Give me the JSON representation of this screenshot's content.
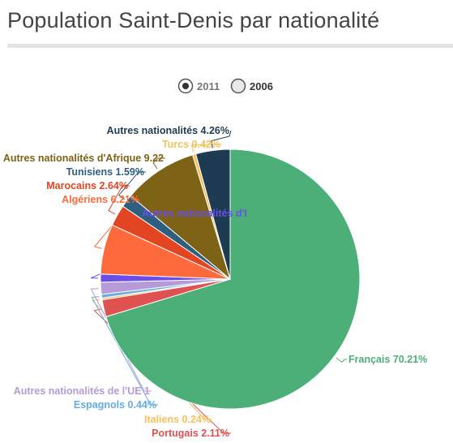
{
  "header": {
    "title": "Population Saint-Denis par nationalité"
  },
  "legend": {
    "placement": "top-center",
    "options": [
      {
        "label": "2011",
        "selected": true
      },
      {
        "label": "2006",
        "selected": false
      }
    ]
  },
  "chart_data": {
    "type": "pie",
    "year": "2011",
    "start_angle_deg": 0,
    "direction": "clockwise",
    "slices": [
      {
        "label": "Français 70.21%",
        "name": "Français",
        "value": 70.21,
        "color": "#4caf77",
        "label_color": "#4caf77"
      },
      {
        "label": "Portugais 2.11%",
        "name": "Portugais",
        "value": 2.11,
        "color": "#e05252",
        "label_color": "#e05252"
      },
      {
        "label": "Italiens 0.24%",
        "name": "Italiens",
        "value": 0.24,
        "color": "#f4c15d",
        "label_color": "#f4c15d"
      },
      {
        "label": "Espagnols 0.44%",
        "name": "Espagnols",
        "value": 0.44,
        "color": "#63aee0",
        "label_color": "#63aee0"
      },
      {
        "label": "Autres nationalités de l'UE 1",
        "name": "Autres nationalités de l'UE",
        "value": 1.5,
        "color": "#b79ad8",
        "label_color": "#b79ad8"
      },
      {
        "label": "Autres nationalités d'I",
        "name": "Autres nationalités d'I",
        "value": 1.0,
        "color": "#6b4ee8",
        "label_color": "#6b4ee8"
      },
      {
        "label": "Algériens 6.21%",
        "name": "Algériens",
        "value": 6.21,
        "color": "#ff6a3d",
        "label_color": "#ff6a3d"
      },
      {
        "label": "Marocains 2.64%",
        "name": "Marocains",
        "value": 2.64,
        "color": "#e34422",
        "label_color": "#e34422"
      },
      {
        "label": "Tunisiens 1.59%",
        "name": "Tunisiens",
        "value": 1.59,
        "color": "#2d5f80",
        "label_color": "#2d5f80"
      },
      {
        "label": "Autres nationalités d'Afrique 9.22",
        "name": "Autres nationalités d'Afrique",
        "value": 9.22,
        "color": "#7e6216",
        "label_color": "#7e6216"
      },
      {
        "label": "Turcs 0.42%",
        "name": "Turcs",
        "value": 0.42,
        "color": "#f4c15d",
        "label_color": "#f4c15d"
      },
      {
        "label": "Autres nationalités 4.26%",
        "name": "Autres nationalités",
        "value": 4.26,
        "color": "#1d3c52",
        "label_color": "#1d3c52"
      }
    ]
  }
}
